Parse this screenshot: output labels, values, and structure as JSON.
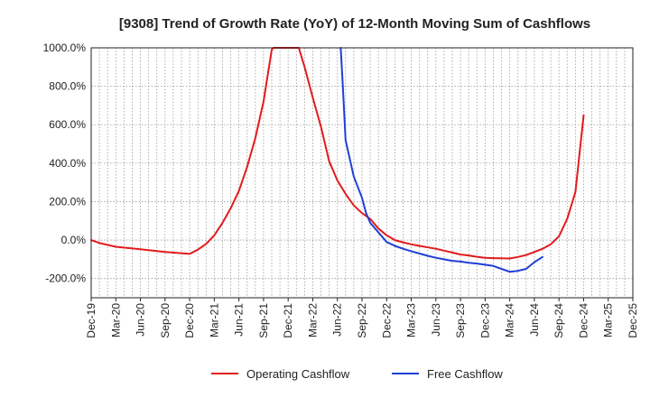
{
  "chart_data": {
    "type": "line",
    "title": "[9308]  Trend of Growth Rate (YoY) of 12-Month Moving Sum of Cashflows",
    "xlabel": "",
    "ylabel": "",
    "ylim": [
      -300,
      1000
    ],
    "y_ticks": [
      {
        "value": 1000,
        "label": "1000.0%"
      },
      {
        "value": 800,
        "label": "800.0%"
      },
      {
        "value": 600,
        "label": "600.0%"
      },
      {
        "value": 400,
        "label": "400.0%"
      },
      {
        "value": 200,
        "label": "200.0%"
      },
      {
        "value": 0,
        "label": "0.0%"
      },
      {
        "value": -200,
        "label": "-200.0%"
      }
    ],
    "x_range": [
      0,
      66
    ],
    "x_ticks": [
      {
        "index": 0,
        "label": "Dec-19"
      },
      {
        "index": 3,
        "label": "Mar-20"
      },
      {
        "index": 6,
        "label": "Jun-20"
      },
      {
        "index": 9,
        "label": "Sep-20"
      },
      {
        "index": 12,
        "label": "Dec-20"
      },
      {
        "index": 15,
        "label": "Mar-21"
      },
      {
        "index": 18,
        "label": "Jun-21"
      },
      {
        "index": 21,
        "label": "Sep-21"
      },
      {
        "index": 24,
        "label": "Dec-21"
      },
      {
        "index": 27,
        "label": "Mar-22"
      },
      {
        "index": 30,
        "label": "Jun-22"
      },
      {
        "index": 33,
        "label": "Sep-22"
      },
      {
        "index": 36,
        "label": "Dec-22"
      },
      {
        "index": 39,
        "label": "Mar-23"
      },
      {
        "index": 42,
        "label": "Jun-23"
      },
      {
        "index": 45,
        "label": "Sep-23"
      },
      {
        "index": 48,
        "label": "Dec-23"
      },
      {
        "index": 51,
        "label": "Mar-24"
      },
      {
        "index": 54,
        "label": "Jun-24"
      },
      {
        "index": 57,
        "label": "Sep-24"
      },
      {
        "index": 60,
        "label": "Dec-24"
      },
      {
        "index": 63,
        "label": "Mar-25"
      },
      {
        "index": 66,
        "label": "Dec-25"
      }
    ],
    "grid": true,
    "legend_position": "bottom",
    "series": [
      {
        "name": "Operating Cashflow",
        "color": "#e31a1c",
        "points": [
          [
            0,
            0
          ],
          [
            1,
            -15
          ],
          [
            3,
            -35
          ],
          [
            6,
            -48
          ],
          [
            9,
            -62
          ],
          [
            12,
            -72
          ],
          [
            13,
            -50
          ],
          [
            14,
            -20
          ],
          [
            15,
            25
          ],
          [
            16,
            90
          ],
          [
            17,
            165
          ],
          [
            18,
            255
          ],
          [
            19,
            380
          ],
          [
            20,
            530
          ],
          [
            21,
            720
          ],
          [
            22,
            990
          ],
          [
            22.2,
            1000
          ],
          [
            25.3,
            1000
          ],
          [
            26,
            900
          ],
          [
            27,
            740
          ],
          [
            28,
            590
          ],
          [
            29,
            410
          ],
          [
            30,
            310
          ],
          [
            31,
            240
          ],
          [
            32,
            180
          ],
          [
            33,
            140
          ],
          [
            34,
            110
          ],
          [
            35,
            60
          ],
          [
            36,
            25
          ],
          [
            37,
            0
          ],
          [
            38,
            -12
          ],
          [
            39,
            -22
          ],
          [
            40,
            -30
          ],
          [
            42,
            -45
          ],
          [
            43,
            -55
          ],
          [
            44,
            -65
          ],
          [
            45,
            -75
          ],
          [
            46,
            -80
          ],
          [
            47,
            -87
          ],
          [
            48,
            -92
          ],
          [
            49,
            -94
          ],
          [
            50,
            -95
          ],
          [
            51,
            -96
          ],
          [
            52,
            -88
          ],
          [
            53,
            -78
          ],
          [
            54,
            -62
          ],
          [
            55,
            -45
          ],
          [
            56,
            -22
          ],
          [
            57,
            20
          ],
          [
            58,
            110
          ],
          [
            59,
            250
          ],
          [
            60,
            650
          ]
        ]
      },
      {
        "name": "Free Cashflow",
        "color": "#1f3fd6",
        "points": [
          [
            30.4,
            1000
          ],
          [
            30.6,
            850
          ],
          [
            31,
            520
          ],
          [
            32,
            330
          ],
          [
            33,
            220
          ],
          [
            33.5,
            140
          ],
          [
            34,
            90
          ],
          [
            35,
            40
          ],
          [
            36,
            -10
          ],
          [
            37,
            -30
          ],
          [
            38,
            -45
          ],
          [
            39,
            -58
          ],
          [
            40,
            -70
          ],
          [
            41,
            -82
          ],
          [
            42,
            -92
          ],
          [
            43,
            -100
          ],
          [
            44,
            -108
          ],
          [
            45,
            -112
          ],
          [
            46,
            -118
          ],
          [
            47,
            -122
          ],
          [
            48,
            -128
          ],
          [
            49,
            -135
          ],
          [
            50,
            -150
          ],
          [
            51,
            -165
          ],
          [
            52,
            -160
          ],
          [
            53,
            -150
          ],
          [
            54,
            -115
          ],
          [
            55,
            -88
          ]
        ]
      }
    ]
  }
}
